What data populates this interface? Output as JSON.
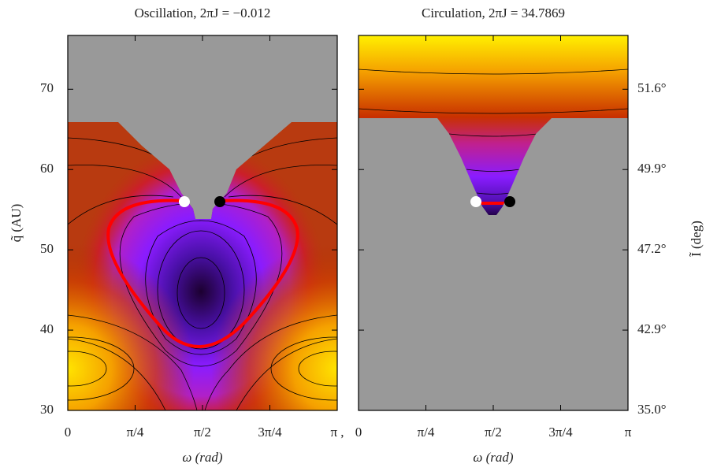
{
  "chart_data": [
    {
      "type": "heatmap",
      "title": "Oscillation,  2πJ = −0.012",
      "xlabel": "ω (rad)",
      "ylabel": "q̃ (AU)",
      "xlim": [
        0,
        3.1416
      ],
      "xticks": [
        0,
        {
          "value": 0.7854,
          "label": "π/4"
        },
        {
          "value": 1.5708,
          "label": "π/2"
        },
        {
          "value": 2.3562,
          "label": "3π/4"
        },
        {
          "value": 3.1416,
          "label": "π ,"
        }
      ],
      "ylim": [
        30,
        76.7
      ],
      "yticks": [
        30,
        40,
        50,
        60,
        70
      ],
      "markers": {
        "x": [
          1.359,
          1.773
        ],
        "y": [
          56,
          56
        ],
        "colors": [
          "#ffffff",
          "#000000"
        ]
      }
    },
    {
      "type": "heatmap",
      "title": "Circulation,  2πJ = 34.7869",
      "xlabel": "ω (rad)",
      "y2label": "Ĩ (deg)",
      "xlim": [
        0,
        3.1416
      ],
      "xticks": [
        0,
        {
          "value": 0.7854,
          "label": "π/4"
        },
        {
          "value": 1.5708,
          "label": "π/2"
        },
        {
          "value": 2.3562,
          "label": "3π/4"
        },
        {
          "value": 3.1416,
          "label": "π"
        }
      ],
      "ylim": [
        30,
        76.7
      ],
      "y2ticks": [
        {
          "value": 35.0,
          "label": "35.0°"
        },
        {
          "value": 42.9,
          "label": "42.9°"
        },
        {
          "value": 47.2,
          "label": "47.2°"
        },
        {
          "value": 49.9,
          "label": "49.9°"
        },
        {
          "value": 51.6,
          "label": "51.6°"
        }
      ],
      "markers": {
        "x": [
          1.369,
          1.764
        ],
        "y": [
          56,
          56
        ],
        "colors": [
          "#ffffff",
          "#000000"
        ]
      }
    }
  ]
}
